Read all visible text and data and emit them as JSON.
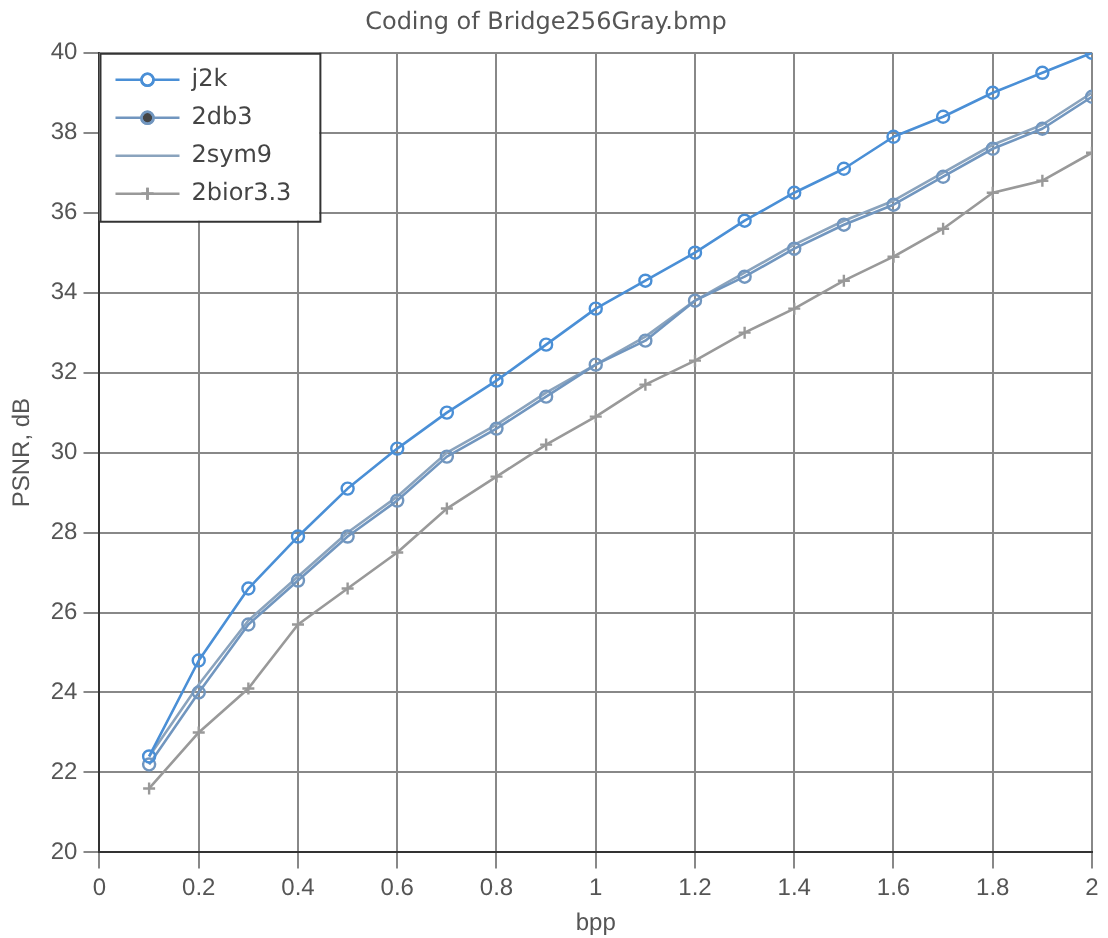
{
  "chart_data": {
    "type": "line",
    "title": "Coding of Bridge256Gray.bmp",
    "xlabel": "bpp",
    "ylabel": "PSNR, dB",
    "x": [
      0.1,
      0.2,
      0.3,
      0.4,
      0.5,
      0.6,
      0.7,
      0.8,
      0.9,
      1.0,
      1.1,
      1.2,
      1.3,
      1.4,
      1.5,
      1.6,
      1.7,
      1.8,
      1.9,
      2.0
    ],
    "series": [
      {
        "name": "j2k",
        "color": "#4a8fd6",
        "marker": "circle",
        "values": [
          22.4,
          24.8,
          26.6,
          27.9,
          29.1,
          30.1,
          31.0,
          31.8,
          32.7,
          33.6,
          34.3,
          35.0,
          35.8,
          36.5,
          37.1,
          37.9,
          38.4,
          39.0,
          39.5,
          40.0
        ]
      },
      {
        "name": "2db3",
        "color": "#7196bf",
        "marker": "circle",
        "values": [
          22.2,
          24.0,
          25.7,
          26.8,
          27.9,
          28.8,
          29.9,
          30.6,
          31.4,
          32.2,
          32.8,
          33.8,
          34.4,
          35.1,
          35.7,
          36.2,
          36.9,
          37.6,
          38.1,
          38.9
        ]
      },
      {
        "name": "2sym9",
        "color": "#8aa3bd",
        "marker": "none",
        "values": [
          22.4,
          24.2,
          25.8,
          26.9,
          28.0,
          28.9,
          30.0,
          30.7,
          31.5,
          32.2,
          32.9,
          33.8,
          34.5,
          35.2,
          35.8,
          36.3,
          37.0,
          37.7,
          38.2,
          39.0
        ]
      },
      {
        "name": "2bior3.3",
        "color": "#999999",
        "marker": "cross",
        "values": [
          21.6,
          23.0,
          24.1,
          25.7,
          26.6,
          27.5,
          28.6,
          29.4,
          30.2,
          30.9,
          31.7,
          32.3,
          33.0,
          33.6,
          34.3,
          34.9,
          35.6,
          36.5,
          36.8,
          37.5
        ]
      }
    ],
    "xlim": [
      0,
      2
    ],
    "xticks": [
      0,
      0.2,
      0.4,
      0.6,
      0.8,
      1,
      1.2,
      1.4,
      1.6,
      1.8,
      2
    ],
    "ylim": [
      20,
      40
    ],
    "yticks": [
      20,
      22,
      24,
      26,
      28,
      30,
      32,
      34,
      36,
      38,
      40
    ],
    "grid": true,
    "legend": "top left",
    "line_style": "solid"
  }
}
